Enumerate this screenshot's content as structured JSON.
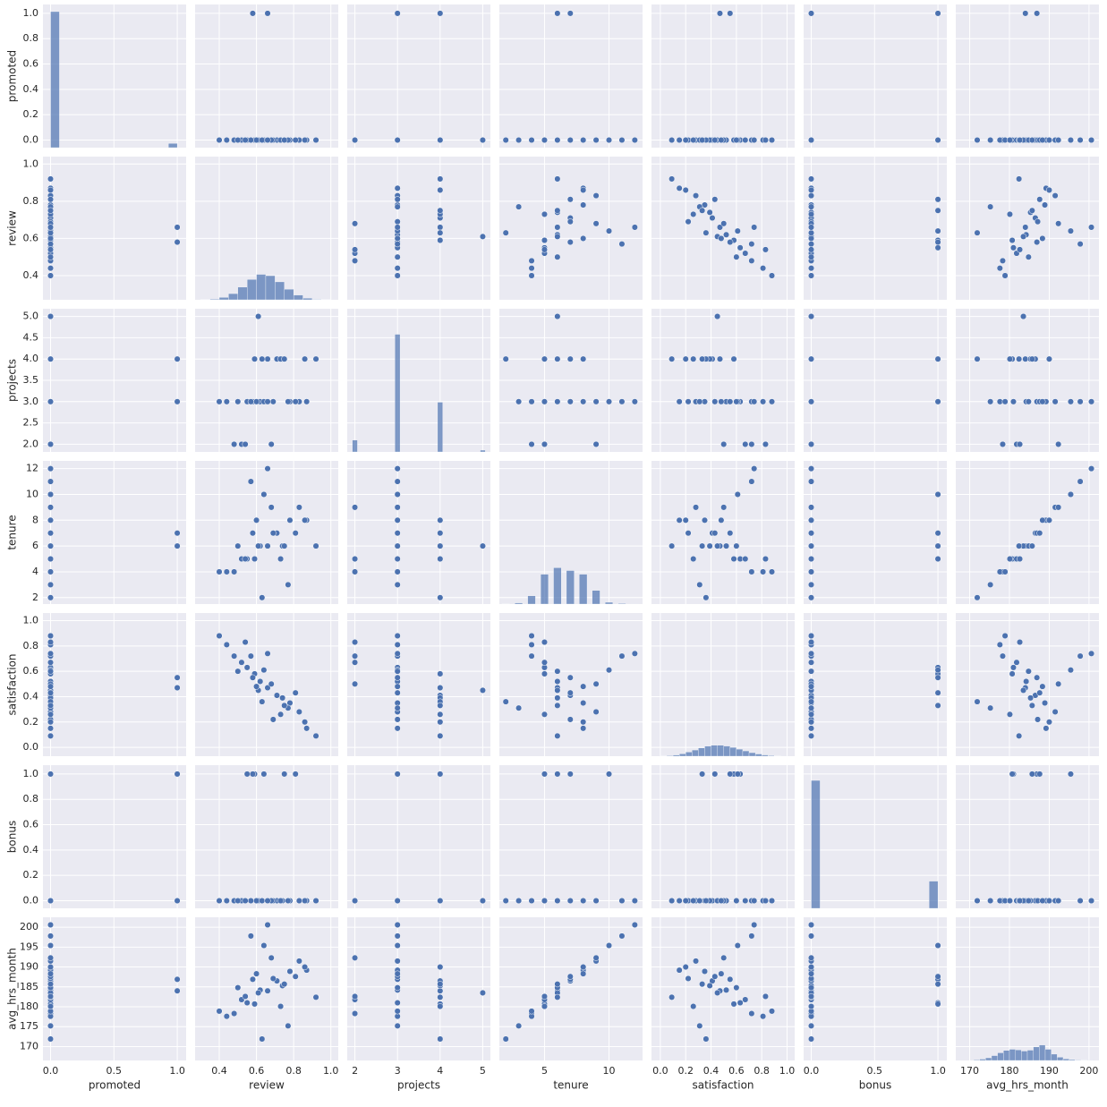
{
  "chart_data": {
    "type": "pairplot",
    "color": "#4c72b0",
    "grid": true,
    "variables": [
      {
        "name": "promoted",
        "lim": [
          -0.06,
          1.07
        ],
        "xticks": [
          {
            "value": 0,
            "label": "0.0"
          },
          0.5,
          {
            "value": 1,
            "label": "1.0"
          }
        ],
        "yticks": [
          {
            "value": 0,
            "label": "0.0"
          },
          0.2,
          0.4,
          0.6,
          0.8,
          {
            "value": 1,
            "label": "1.0"
          }
        ],
        "values": [
          0,
          0,
          0,
          0,
          0,
          1,
          0,
          0,
          0,
          0,
          0,
          0,
          0,
          0,
          0,
          0,
          1,
          0,
          0,
          0,
          0,
          0,
          0,
          0,
          0,
          0,
          0,
          0,
          0,
          0
        ],
        "hist": {
          "bins": [
            0,
            0.07,
            0.93,
            1.0
          ],
          "counts": [
            9251,
            0,
            289
          ]
        }
      },
      {
        "name": "review",
        "lim": [
          0.27,
          1.04
        ],
        "xticks": [
          0.4,
          0.6,
          0.8,
          {
            "value": 1,
            "label": "1.0"
          }
        ],
        "yticks": [
          0.4,
          0.6,
          0.8,
          {
            "value": 1,
            "label": "1.0"
          }
        ],
        "values": [
          0.62,
          0.71,
          0.55,
          0.78,
          0.48,
          0.66,
          0.83,
          0.59,
          0.69,
          0.44,
          0.74,
          0.87,
          0.52,
          0.64,
          0.61,
          0.77,
          0.58,
          0.92,
          0.4,
          0.68,
          0.73,
          0.57,
          0.81,
          0.63,
          0.5,
          0.86,
          0.66,
          0.54,
          0.75,
          0.6
        ],
        "hist": {
          "bins": [
            0.3,
            0.35,
            0.4,
            0.45,
            0.5,
            0.55,
            0.6,
            0.65,
            0.7,
            0.75,
            0.8,
            0.85,
            0.9,
            0.95,
            1.0
          ],
          "counts": [
            15,
            50,
            160,
            420,
            860,
            1380,
            1730,
            1640,
            1220,
            720,
            320,
            110,
            30,
            10
          ]
        }
      },
      {
        "name": "projects",
        "lim": [
          1.82,
          5.18
        ],
        "xticks": [
          2,
          3,
          4,
          5
        ],
        "yticks": [
          {
            "value": 2,
            "label": "2.0"
          },
          2.5,
          {
            "value": 3,
            "label": "3.0"
          },
          3.5,
          {
            "value": 4,
            "label": "4.0"
          },
          4.5,
          {
            "value": 5,
            "label": "5.0"
          }
        ],
        "values": [
          3,
          4,
          3,
          3,
          2,
          4,
          3,
          4,
          3,
          3,
          4,
          3,
          2,
          3,
          5,
          3,
          3,
          4,
          3,
          2,
          4,
          3,
          3,
          4,
          3,
          4,
          3,
          2,
          4,
          3
        ],
        "hist": {
          "bins": [
            1.94,
            2.06,
            2.94,
            3.06,
            3.94,
            4.06,
            4.94,
            5.06
          ],
          "counts": [
            800,
            0,
            8000,
            0,
            3380,
            0,
            120
          ]
        }
      },
      {
        "name": "tenure",
        "lim": [
          1.5,
          12.6
        ],
        "xticks": [
          5,
          10
        ],
        "yticks": [
          2,
          4,
          6,
          8,
          10,
          12
        ],
        "values": [
          6,
          7,
          5,
          8,
          4,
          6,
          9,
          5,
          7,
          4,
          6,
          8,
          5,
          10,
          6,
          3,
          7,
          6,
          4,
          9,
          5,
          11,
          7,
          2,
          6,
          8,
          12,
          5,
          6,
          8
        ],
        "hist": {
          "bins": [
            1.7,
            2.3,
            2.7,
            3.3,
            3.7,
            4.3,
            4.7,
            5.3,
            5.7,
            6.3,
            6.7,
            7.3,
            7.7,
            8.3,
            8.7,
            9.3,
            9.7,
            10.3,
            10.7,
            11.3,
            11.7,
            12.3
          ],
          "counts": [
            20,
            0,
            80,
            0,
            560,
            0,
            2030,
            0,
            2470,
            0,
            2280,
            0,
            2030,
            0,
            925,
            0,
            120,
            0,
            40,
            0,
            5
          ]
        }
      },
      {
        "name": "satisfaction",
        "lim": [
          -0.07,
          1.06
        ],
        "xticks": [
          {
            "value": 0,
            "label": "0.0"
          },
          0.2,
          0.4,
          0.6,
          0.8,
          {
            "value": 1,
            "label": "1.0"
          }
        ],
        "yticks": [
          {
            "value": 0,
            "label": "0.0"
          },
          0.2,
          0.4,
          0.6,
          0.8,
          {
            "value": 1,
            "label": "1.0"
          }
        ],
        "values": [
          0.52,
          0.41,
          0.63,
          0.35,
          0.72,
          0.47,
          0.28,
          0.58,
          0.22,
          0.81,
          0.39,
          0.15,
          0.67,
          0.61,
          0.45,
          0.31,
          0.55,
          0.09,
          0.88,
          0.5,
          0.26,
          0.72,
          0.43,
          0.36,
          0.6,
          0.2,
          0.74,
          0.83,
          0.33,
          0.48
        ],
        "hist": {
          "bins": [
            0,
            0.05,
            0.1,
            0.15,
            0.2,
            0.25,
            0.3,
            0.35,
            0.4,
            0.45,
            0.5,
            0.55,
            0.6,
            0.65,
            0.7,
            0.75,
            0.8,
            0.85,
            0.9,
            0.95,
            1.0
          ],
          "counts": [
            15,
            35,
            80,
            160,
            280,
            420,
            560,
            680,
            740,
            740,
            690,
            600,
            480,
            360,
            240,
            150,
            85,
            40,
            18,
            6
          ]
        }
      },
      {
        "name": "bonus",
        "lim": [
          -0.06,
          1.07
        ],
        "xticks": [
          {
            "value": 0,
            "label": "0.0"
          },
          0.5,
          {
            "value": 1,
            "label": "1.0"
          }
        ],
        "yticks": [
          {
            "value": 0,
            "label": "0.0"
          },
          0.2,
          0.4,
          0.6,
          0.8,
          {
            "value": 1,
            "label": "1.0"
          }
        ],
        "values": [
          0,
          0,
          1,
          0,
          0,
          0,
          0,
          1,
          0,
          0,
          0,
          0,
          0,
          1,
          0,
          0,
          1,
          0,
          0,
          0,
          0,
          0,
          1,
          0,
          0,
          0,
          0,
          0,
          1,
          0
        ],
        "hist": {
          "bins": [
            0,
            0.07,
            0.93,
            1.0
          ],
          "counts": [
            8700,
            0,
            1850
          ]
        }
      },
      {
        "name": "avg_hrs_month",
        "lim": [
          166.5,
          202.5
        ],
        "xticks": [
          170,
          180,
          190,
          200
        ],
        "yticks": [
          170,
          175,
          180,
          185,
          190,
          195,
          200
        ],
        "values": [
          184.2,
          186.5,
          181.0,
          188.9,
          178.3,
          184.0,
          191.5,
          180.7,
          187.1,
          177.6,
          185.3,
          189.2,
          181.8,
          195.4,
          183.5,
          175.2,
          186.9,
          182.4,
          178.9,
          192.3,
          180.1,
          197.8,
          187.6,
          171.9,
          184.8,
          190.0,
          200.6,
          182.6,
          185.7,
          188.3
        ],
        "hist": {
          "bins": [
            171,
            172.5,
            174,
            175.5,
            177,
            178.5,
            180,
            181.5,
            183,
            184.5,
            186,
            187.5,
            189,
            190.5,
            192,
            193.5,
            195,
            196.5,
            198,
            199.5,
            201
          ],
          "counts": [
            40,
            90,
            180,
            330,
            520,
            680,
            760,
            720,
            640,
            700,
            920,
            1050,
            760,
            430,
            220,
            110,
            60,
            30,
            15,
            8
          ]
        }
      }
    ]
  }
}
